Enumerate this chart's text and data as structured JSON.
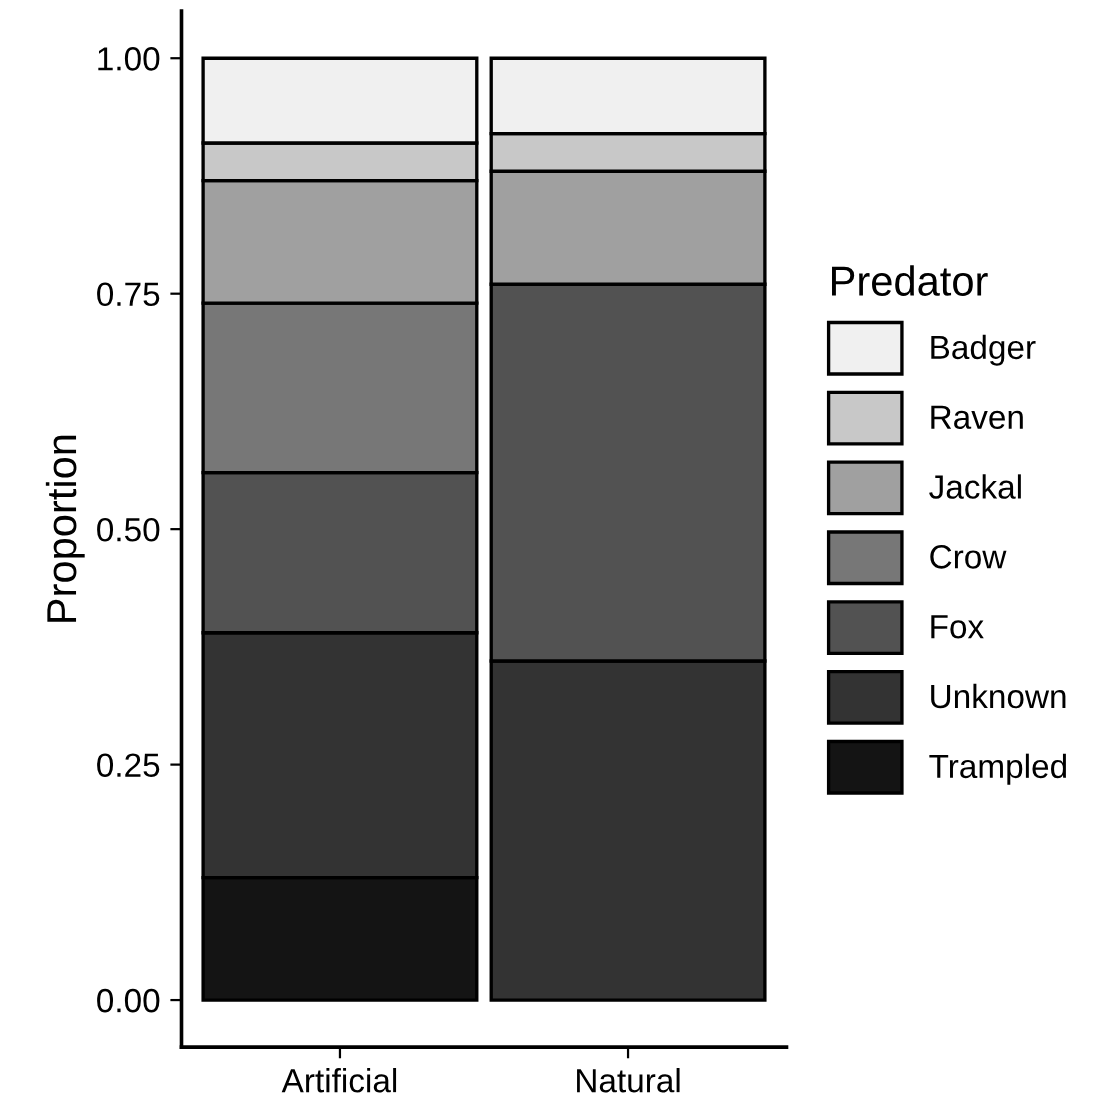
{
  "chart_data": {
    "type": "bar",
    "stacked": true,
    "ylabel": "Proportion",
    "legend_title": "Predator",
    "legend": "right",
    "grid": false,
    "categories": [
      "Artificial",
      "Natural"
    ],
    "series": [
      {
        "name": "Trampled",
        "color": "#141414",
        "values": [
          0.13,
          null
        ]
      },
      {
        "name": "Unknown",
        "color": "#333333",
        "values": [
          0.26,
          0.36
        ]
      },
      {
        "name": "Fox",
        "color": "#525252",
        "values": [
          0.17,
          0.4
        ]
      },
      {
        "name": "Crow",
        "color": "#777777",
        "values": [
          0.18,
          null
        ]
      },
      {
        "name": "Jackal",
        "color": "#a0a0a0",
        "values": [
          0.13,
          0.12
        ]
      },
      {
        "name": "Raven",
        "color": "#c8c8c8",
        "values": [
          0.04,
          0.04
        ]
      },
      {
        "name": "Badger",
        "color": "#f0f0f0",
        "values": [
          0.09,
          0.08
        ]
      }
    ],
    "ylim": [
      -0.05,
      1.05
    ],
    "yticks": [
      {
        "value": 0,
        "label": "0.00"
      },
      {
        "value": 0.25,
        "label": "0.25"
      },
      {
        "value": 0.5,
        "label": "0.50"
      },
      {
        "value": 0.75,
        "label": "0.75"
      },
      {
        "value": 1,
        "label": "1.00"
      }
    ]
  }
}
